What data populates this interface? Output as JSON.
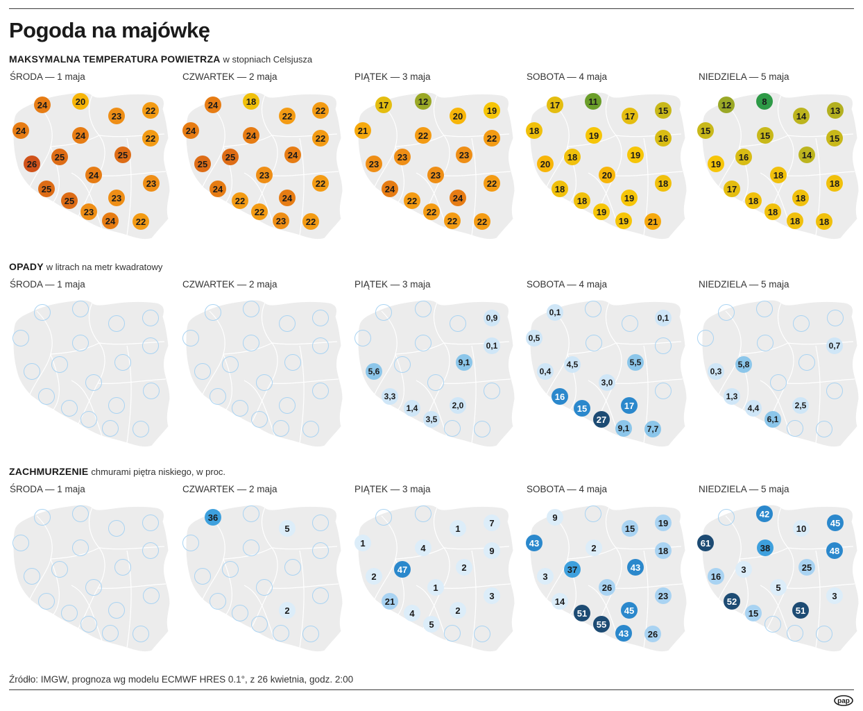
{
  "title": "Pogoda na majówkę",
  "source": "Źródło: IMGW, prognoza wg modelu ECMWF HRES 0.1°, z 26 kwietnia, godz. 2:00",
  "logo_text": "pap",
  "days": [
    "ŚRODA — 1 maja",
    "CZWARTEK — 2 maja",
    "PIĄTEK — 3 maja",
    "SOBOTA — 4 maja",
    "NIEDZIELA — 5 maja"
  ],
  "sections": [
    {
      "id": "temp",
      "title_bold": "MAKSYMALNA TEMPERATURA POWIETRZA",
      "title_sub": "w stopniach Celsjusza",
      "scale": {
        "type": "temperature",
        "colors": {
          "8": "#2e9a47",
          "11": "#6b9e2a",
          "12": "#9aa826",
          "13": "#b3b020",
          "14": "#bcb41e",
          "15": "#c8b81a",
          "16": "#d8bc14",
          "17": "#e4bd10",
          "18": "#f0c00c",
          "19": "#f6c508",
          "20": "#f7b509",
          "21": "#f6a90e",
          "22": "#f39b14",
          "23": "#ee8e16",
          "24": "#e67c14",
          "25": "#dd6c16",
          "26": "#d0521a"
        }
      },
      "maps": [
        [
          "24",
          "20",
          "23",
          "22",
          "24",
          "24",
          "22",
          "25",
          "25",
          "26",
          "24",
          "23",
          "25",
          "23",
          "25",
          "23",
          "24",
          "22"
        ],
        [
          "24",
          "18",
          "22",
          "22",
          "24",
          "24",
          "22",
          "25",
          "24",
          "25",
          "23",
          "22",
          "24",
          "24",
          "22",
          "22",
          "23",
          "22"
        ],
        [
          "17",
          "12",
          "20",
          "19",
          "21",
          "22",
          "22",
          "23",
          "23",
          "23",
          "23",
          "22",
          "24",
          "24",
          "22",
          "22",
          "22",
          "22"
        ],
        [
          "17",
          "11",
          "17",
          "15",
          "18",
          "19",
          "16",
          "18",
          "19",
          "20",
          "20",
          "18",
          "18",
          "19",
          "18",
          "19",
          "19",
          "21"
        ],
        [
          "12",
          "8",
          "14",
          "13",
          "15",
          "15",
          "15",
          "16",
          "14",
          "19",
          "18",
          "18",
          "17",
          "18",
          "18",
          "18",
          "18",
          "18"
        ]
      ]
    },
    {
      "id": "rain",
      "title_bold": "OPADY",
      "title_sub": "w litrach na metr kwadratowy",
      "scale": {
        "type": "precip"
      },
      "maps": [
        [
          "",
          "",
          "",
          "",
          "",
          "",
          "",
          "",
          "",
          "",
          "",
          "",
          "",
          "",
          "",
          "",
          "",
          ""
        ],
        [
          "",
          "",
          "",
          "",
          "",
          "",
          "",
          "",
          "",
          "",
          "",
          "",
          "",
          "",
          "",
          "",
          "",
          ""
        ],
        [
          "",
          "",
          "",
          "0,9",
          "",
          "",
          "0,1",
          "",
          "9,1",
          "5,6",
          "",
          "",
          "3,3",
          "2,0",
          "1,4",
          "3,5",
          "",
          ""
        ],
        [
          "0,1",
          "",
          "",
          "0,1",
          "0,5",
          "",
          "",
          "4,5",
          "5,5",
          "0,4",
          "3,0",
          "",
          "16",
          "17",
          "15",
          "27",
          "9,1",
          "7,7"
        ],
        [
          "",
          "",
          "",
          "",
          "",
          "",
          "0,7",
          "5,8",
          "",
          "0,3",
          "",
          "",
          "1,3",
          "2,5",
          "4,4",
          "6,1",
          "",
          ""
        ]
      ]
    },
    {
      "id": "cloud",
      "title_bold": "ZACHMURZENIE",
      "title_sub": "chmurami piętra niskiego, w proc.",
      "scale": {
        "type": "cloud"
      },
      "maps": [
        [
          "",
          "",
          "",
          "",
          "",
          "",
          "",
          "",
          "",
          "",
          "",
          "",
          "",
          "",
          "",
          "",
          "",
          ""
        ],
        [
          "36",
          "",
          "5",
          "",
          "",
          "",
          "",
          "",
          "",
          "",
          "",
          "",
          "",
          "2",
          "",
          "",
          "",
          ""
        ],
        [
          "",
          "",
          "1",
          "7",
          "1",
          "4",
          "9",
          "47",
          "2",
          "2",
          "1",
          "3",
          "21",
          "2",
          "4",
          "5",
          "",
          ""
        ],
        [
          "9",
          "",
          "15",
          "19",
          "43",
          "2",
          "18",
          "37",
          "43",
          "3",
          "26",
          "23",
          "14",
          "45",
          "51",
          "55",
          "43",
          "26"
        ],
        [
          "",
          "42",
          "10",
          "45",
          "61",
          "38",
          "48",
          "3",
          "25",
          "16",
          "5",
          "3",
          "52",
          "51",
          "15",
          "",
          "",
          ""
        ]
      ]
    }
  ]
}
